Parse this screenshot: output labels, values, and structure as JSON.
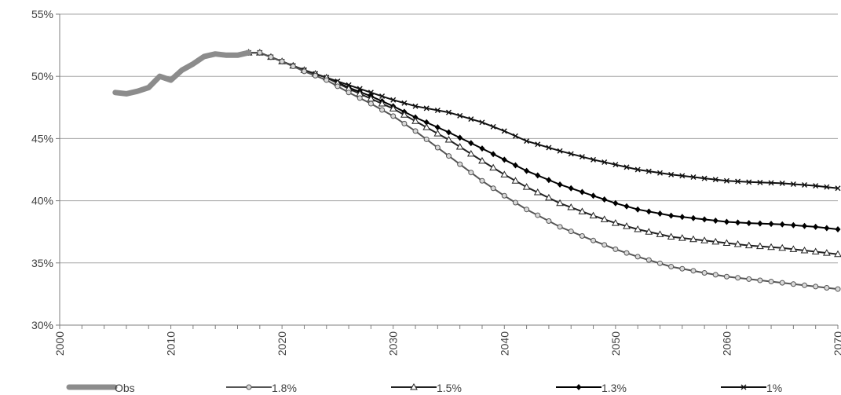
{
  "chart_data": {
    "type": "line",
    "title": "",
    "xlabel": "",
    "ylabel": "",
    "xlim": [
      2000,
      2070
    ],
    "ylim": [
      30,
      55
    ],
    "x_ticks": [
      "2000",
      "2010",
      "2020",
      "2030",
      "2040",
      "2050",
      "2060",
      "2070"
    ],
    "y_ticks": [
      "30%",
      "35%",
      "40%",
      "45%",
      "50%",
      "55%"
    ],
    "grid": "horizontal",
    "legend": "bottom",
    "series": [
      {
        "name": "Obs",
        "color": "#8c8c8c",
        "marker": "none",
        "x": [
          2005,
          2006,
          2007,
          2008,
          2009,
          2010,
          2011,
          2012,
          2013,
          2014,
          2015,
          2016,
          2017
        ],
        "y": [
          48.7,
          48.6,
          48.8,
          49.1,
          50.0,
          49.7,
          50.5,
          51.0,
          51.6,
          51.8,
          51.7,
          51.7,
          51.9
        ]
      },
      {
        "name": "1.8%",
        "color": "#555555",
        "marker": "circle",
        "x": [
          2017,
          2018,
          2020,
          2022,
          2024,
          2026,
          2028,
          2030,
          2032,
          2035,
          2038,
          2040,
          2042,
          2045,
          2048,
          2050,
          2052,
          2055,
          2058,
          2060,
          2062,
          2065,
          2068,
          2070
        ],
        "y": [
          51.9,
          51.9,
          51.2,
          50.4,
          49.7,
          48.7,
          47.8,
          46.8,
          45.6,
          43.6,
          41.6,
          40.4,
          39.3,
          37.9,
          36.8,
          36.1,
          35.5,
          34.7,
          34.2,
          33.9,
          33.7,
          33.4,
          33.1,
          32.9
        ]
      },
      {
        "name": "1.5%",
        "color": "#222222",
        "marker": "triangle",
        "x": [
          2017,
          2018,
          2020,
          2022,
          2024,
          2026,
          2028,
          2030,
          2032,
          2035,
          2038,
          2040,
          2042,
          2045,
          2048,
          2050,
          2052,
          2055,
          2058,
          2060,
          2062,
          2065,
          2068,
          2070
        ],
        "y": [
          51.9,
          51.9,
          51.2,
          50.5,
          49.9,
          49.0,
          48.2,
          47.4,
          46.4,
          44.9,
          43.2,
          42.1,
          41.1,
          39.8,
          38.8,
          38.2,
          37.7,
          37.1,
          36.8,
          36.6,
          36.4,
          36.2,
          35.9,
          35.7
        ]
      },
      {
        "name": "1.3%",
        "color": "#000000",
        "marker": "diamond",
        "x": [
          2017,
          2018,
          2020,
          2022,
          2024,
          2026,
          2028,
          2030,
          2032,
          2035,
          2038,
          2040,
          2042,
          2045,
          2048,
          2050,
          2052,
          2055,
          2058,
          2060,
          2062,
          2065,
          2068,
          2070
        ],
        "y": [
          51.9,
          51.9,
          51.2,
          50.5,
          49.9,
          49.1,
          48.4,
          47.6,
          46.7,
          45.5,
          44.2,
          43.3,
          42.4,
          41.3,
          40.4,
          39.8,
          39.3,
          38.8,
          38.5,
          38.3,
          38.2,
          38.1,
          37.9,
          37.7
        ]
      },
      {
        "name": "1%",
        "color": "#111111",
        "marker": "x",
        "x": [
          2017,
          2018,
          2020,
          2022,
          2024,
          2026,
          2028,
          2030,
          2032,
          2035,
          2038,
          2040,
          2042,
          2045,
          2048,
          2050,
          2052,
          2055,
          2058,
          2060,
          2062,
          2065,
          2068,
          2070
        ],
        "y": [
          51.9,
          51.9,
          51.2,
          50.5,
          49.9,
          49.3,
          48.7,
          48.1,
          47.6,
          47.1,
          46.3,
          45.6,
          44.8,
          44.0,
          43.3,
          42.9,
          42.5,
          42.1,
          41.8,
          41.6,
          41.5,
          41.4,
          41.2,
          41.0
        ]
      }
    ]
  }
}
